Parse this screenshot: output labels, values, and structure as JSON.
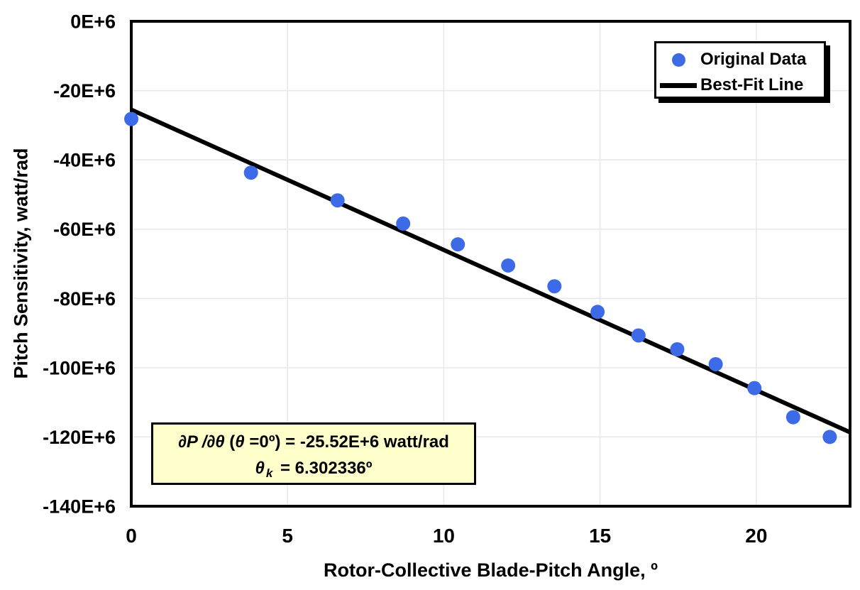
{
  "chart_data": {
    "type": "scatter",
    "title": "",
    "xlabel": "Rotor-Collective Blade-Pitch Angle, º",
    "ylabel": "Pitch Sensitivity, watt/rad",
    "y_unit": "E+6 watt/rad",
    "xlim": [
      0,
      23
    ],
    "ylim_e6": [
      -140,
      0
    ],
    "grid": true,
    "grid_color": "#e8e8e8",
    "frame_color": "#000000",
    "legend_position": "top-right",
    "x_ticks": [
      {
        "value": 0,
        "label": "0"
      },
      {
        "value": 5,
        "label": "5"
      },
      {
        "value": 10,
        "label": "10"
      },
      {
        "value": 15,
        "label": "15"
      },
      {
        "value": 20,
        "label": "20"
      }
    ],
    "y_ticks": [
      {
        "value": 0,
        "label": "0E+6"
      },
      {
        "value": -20,
        "label": "-20E+6"
      },
      {
        "value": -40,
        "label": "-40E+6"
      },
      {
        "value": -60,
        "label": "-60E+6"
      },
      {
        "value": -80,
        "label": "-80E+6"
      },
      {
        "value": -100,
        "label": "-100E+6"
      },
      {
        "value": -120,
        "label": "-120E+6"
      },
      {
        "value": -140,
        "label": "-140E+6"
      }
    ],
    "series": [
      {
        "name": "Original Data",
        "type": "scatter",
        "marker": "circle",
        "marker_color": "#3d6be8",
        "x": [
          0.0,
          3.83,
          6.6,
          8.7,
          10.45,
          12.06,
          13.54,
          14.92,
          16.23,
          17.47,
          18.7,
          19.94,
          21.18,
          22.35
        ],
        "y_e6": [
          -28.2,
          -43.7,
          -51.7,
          -58.4,
          -64.4,
          -70.5,
          -76.5,
          -83.9,
          -90.7,
          -94.7,
          -99.0,
          -105.9,
          -114.3,
          -120.0
        ]
      },
      {
        "name": "Best-Fit Line",
        "type": "line",
        "color": "#000000",
        "x": [
          0,
          23
        ],
        "y_e6": [
          -25.52,
          -118.66
        ],
        "fit_params": {
          "dP_dTheta_at_0_e6_watt_per_rad": -25.52,
          "theta_k_deg": 6.302336
        }
      }
    ]
  },
  "annotation": {
    "background": "#ffffcc",
    "line1_seg1": "∂P /∂θ ",
    "line1_seg2": "(",
    "line1_seg3": "θ ",
    "line1_seg4": "=0º) = -25.52E+6 watt/rad",
    "line2_theta": "θ",
    "line2_sub": "k",
    "line2_rest": " = 6.302336º"
  }
}
